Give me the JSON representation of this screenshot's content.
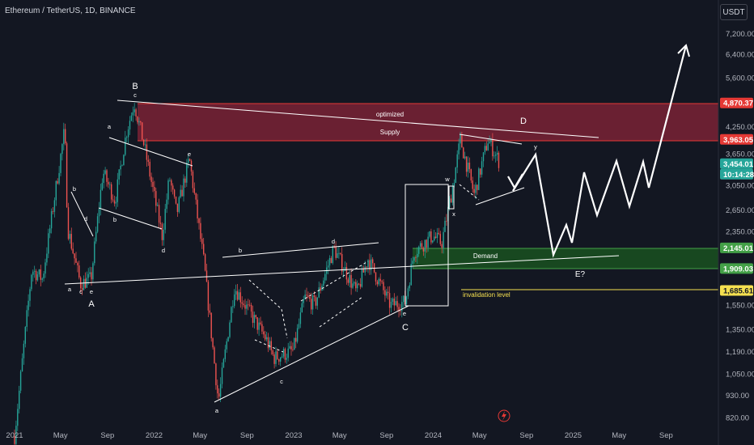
{
  "header": {
    "symbol_title": "Ethereum / TetherUS, 1D, BINANCE",
    "currency_button": "USDT"
  },
  "colors": {
    "background": "#131722",
    "candle_up": "#26a69a",
    "candle_down": "#ef5350",
    "supply_zone": "#b2283f",
    "demand_zone": "#1b5e20",
    "trendline": "#ffffff",
    "invalidation_line": "#f5e050"
  },
  "chart_data": {
    "type": "candlestick",
    "scale": "log",
    "x_ticks": [
      "2021",
      "May",
      "Sep",
      "2022",
      "May",
      "Sep",
      "2023",
      "May",
      "Sep",
      "2024",
      "May",
      "Sep",
      "2025",
      "May",
      "Sep"
    ],
    "y_ticks": [
      "7,200.00",
      "6,400.00",
      "5,600.00",
      "4,250.00",
      "3,650.00",
      "3,050.00",
      "2,650.00",
      "2,350.00",
      "1,550.00",
      "1,350.00",
      "1,190.00",
      "1,050.00",
      "930.00",
      "820.00"
    ],
    "ylim": [
      790,
      8000
    ],
    "approx_close_path": [
      [
        "2021-01-01",
        740
      ],
      [
        "2021-02-15",
        1900
      ],
      [
        "2021-03-15",
        1800
      ],
      [
        "2021-05-12",
        4200
      ],
      [
        "2021-05-20",
        2400
      ],
      [
        "2021-06-22",
        1750
      ],
      [
        "2021-07-20",
        1800
      ],
      [
        "2021-08-20",
        3300
      ],
      [
        "2021-09-21",
        2800
      ],
      [
        "2021-10-20",
        4100
      ],
      [
        "2021-11-10",
        4870
      ],
      [
        "2021-12-04",
        3900
      ],
      [
        "2022-01-22",
        2300
      ],
      [
        "2022-02-10",
        3200
      ],
      [
        "2022-03-01",
        2600
      ],
      [
        "2022-04-03",
        3550
      ],
      [
        "2022-05-12",
        1950
      ],
      [
        "2022-06-18",
        900
      ],
      [
        "2022-07-30",
        1720
      ],
      [
        "2022-09-06",
        1500
      ],
      [
        "2022-10-21",
        1280
      ],
      [
        "2022-11-10",
        1150
      ],
      [
        "2022-12-31",
        1200
      ],
      [
        "2023-01-30",
        1620
      ],
      [
        "2023-02-25",
        1560
      ],
      [
        "2023-04-16",
        2140
      ],
      [
        "2023-06-15",
        1660
      ],
      [
        "2023-07-14",
        2020
      ],
      [
        "2023-09-11",
        1550
      ],
      [
        "2023-10-20",
        1580
      ],
      [
        "2023-11-12",
        2100
      ],
      [
        "2023-12-31",
        2300
      ],
      [
        "2024-01-23",
        2200
      ],
      [
        "2024-02-20",
        3000
      ],
      [
        "2024-03-12",
        3960
      ],
      [
        "2024-04-17",
        2900
      ],
      [
        "2024-05-23",
        3950
      ],
      [
        "2024-06-08",
        3700
      ],
      [
        "2024-06-24",
        3454
      ]
    ],
    "wave_labels": [
      "B",
      "a",
      "b",
      "c",
      "d",
      "e",
      "A",
      "C",
      "D",
      "E?",
      "w",
      "x",
      "y"
    ],
    "price_labels": [
      {
        "value": "4,870.37",
        "color": "#e53935"
      },
      {
        "value": "3,963.05",
        "color": "#e53935"
      },
      {
        "value": "3,454.01",
        "color": "#26a69a"
      },
      {
        "value": "10:14:28",
        "color": "#26a69a"
      },
      {
        "value": "2,145.01",
        "color": "#43a047"
      },
      {
        "value": "1,909.03",
        "color": "#43a047"
      },
      {
        "value": "1,685.61",
        "color": "#f5e050"
      }
    ],
    "zones": {
      "supply_top": 4870.37,
      "supply_bottom": 3963.05,
      "demand_top": 2145.01,
      "demand_bottom": 1909.03,
      "invalidation": 1685.61
    },
    "annotations": [
      "optimized",
      "Supply",
      "Demand",
      "invalidation level"
    ],
    "grid": false,
    "legend": "none"
  }
}
